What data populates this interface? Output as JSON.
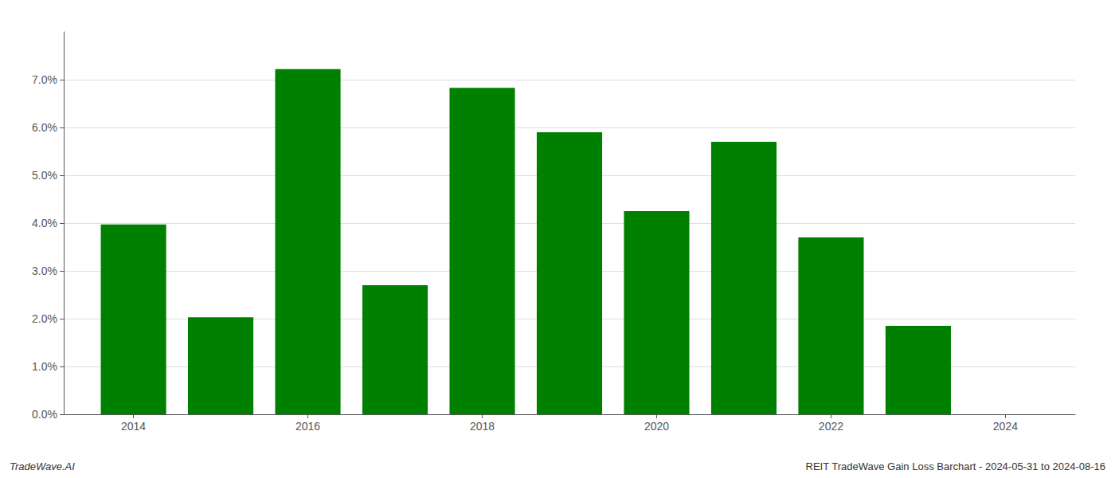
{
  "chart_data": {
    "type": "bar",
    "x": [
      2014,
      2015,
      2016,
      2017,
      2018,
      2019,
      2020,
      2021,
      2022,
      2023
    ],
    "values": [
      0.0397,
      0.0203,
      0.0722,
      0.027,
      0.0683,
      0.059,
      0.0425,
      0.057,
      0.037,
      0.0185
    ],
    "color": "#008000",
    "xlim": [
      2013.2,
      2024.8
    ],
    "xticks": [
      2014,
      2016,
      2018,
      2020,
      2022,
      2024
    ],
    "ylim": [
      0,
      0.08
    ],
    "yticks": [
      {
        "value": 0.0,
        "label": "0.0%"
      },
      {
        "value": 0.01,
        "label": "1.0%"
      },
      {
        "value": 0.02,
        "label": "2.0%"
      },
      {
        "value": 0.03,
        "label": "3.0%"
      },
      {
        "value": 0.04,
        "label": "4.0%"
      },
      {
        "value": 0.05,
        "label": "5.0%"
      },
      {
        "value": 0.06,
        "label": "6.0%"
      },
      {
        "value": 0.07,
        "label": "7.0%"
      }
    ],
    "grid": true,
    "annotations": [
      "TradeWave.AI",
      "REIT TradeWave Gain Loss Barchart - 2024-05-31 to 2024-08-16"
    ]
  }
}
